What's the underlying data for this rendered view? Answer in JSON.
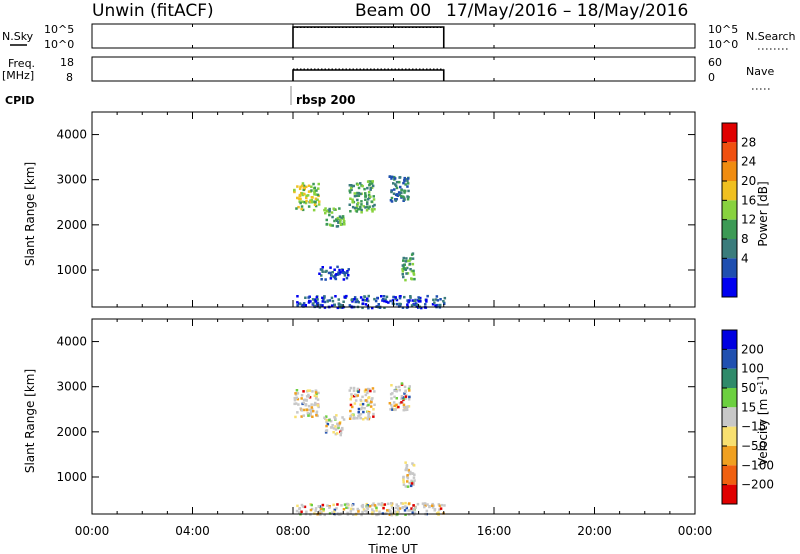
{
  "header": {
    "station": "Unwin (fitACF)",
    "beam": "Beam 00",
    "dates": "17/May/2016 – 18/May/2016"
  },
  "panel_nsky": {
    "left_label": "N.Sky",
    "right_label": "N.Search",
    "ticks_left": [
      "10^5",
      "10^0"
    ],
    "ticks_right": [
      "10^5",
      "10^0"
    ]
  },
  "panel_freq": {
    "left_label_1": "Freq.",
    "left_label_2": "[MHz]",
    "right_label": "Nave",
    "ticks_left": [
      "18",
      "8"
    ],
    "ticks_right": [
      "60",
      "0"
    ]
  },
  "cpid": {
    "label": "CPID",
    "program": "rbsp 200"
  },
  "x_axis": {
    "title": "Time UT",
    "ticks": [
      "00:00",
      "04:00",
      "08:00",
      "12:00",
      "16:00",
      "20:00",
      "00:00"
    ]
  },
  "power_colorbar": {
    "label": "Power [dB]",
    "ticks": [
      "4",
      "8",
      "12",
      "16",
      "20",
      "24",
      "28"
    ],
    "colors": [
      "#0000f0",
      "#1f4fb0",
      "#3a7c7c",
      "#3c9a55",
      "#88d23f",
      "#f0c020",
      "#f08c10",
      "#f05010",
      "#e00000"
    ]
  },
  "velocity_colorbar": {
    "label_main": "Velocity [m s",
    "label_sup": "-1",
    "label_end": "]",
    "ticks": [
      "200",
      "100",
      "50",
      "15",
      "−15",
      "−50",
      "−100",
      "−200"
    ],
    "colors": [
      "#0000e0",
      "#2050b0",
      "#2f8a6a",
      "#6cd040",
      "#c8c8c8",
      "#f8e070",
      "#f0a020",
      "#f06010",
      "#e00000"
    ]
  },
  "chart_data": [
    {
      "type": "line",
      "title": "N.Sky / N.Search",
      "x_unit": "hours UT",
      "xlim": [
        0,
        24
      ],
      "series": [
        {
          "name": "N.Sky",
          "x": [
            8.0,
            14.0
          ],
          "y": [
            100000,
            100000
          ]
        },
        {
          "name": "N.Search",
          "x": [
            8.0,
            14.0
          ],
          "y": [
            100000,
            100000
          ]
        }
      ]
    },
    {
      "type": "line",
      "title": "Freq. / Nave",
      "x_unit": "hours UT",
      "xlim": [
        0,
        24
      ],
      "series": [
        {
          "name": "Freq. [MHz]",
          "x": [
            8.0,
            14.0
          ],
          "y": [
            12,
            12
          ]
        },
        {
          "name": "Nave",
          "x": [
            8.0,
            14.0
          ],
          "y": [
            38,
            38
          ]
        }
      ]
    },
    {
      "type": "heatmap",
      "title": "Power [dB]",
      "xlabel": "Time UT",
      "ylabel": "Slant Range [km]",
      "xlim": [
        0,
        24
      ],
      "ylim": [
        180,
        4500
      ],
      "y_ticks": [
        1000,
        2000,
        3000,
        4000
      ],
      "active_interval": [
        8.0,
        14.0
      ],
      "regions": [
        {
          "x": [
            8.0,
            9.0
          ],
          "y": [
            2350,
            2950
          ],
          "level": 4
        },
        {
          "x": [
            9.2,
            10.0
          ],
          "y": [
            1950,
            2400
          ],
          "level": 3
        },
        {
          "x": [
            10.2,
            11.2
          ],
          "y": [
            2300,
            3000
          ],
          "level": 3
        },
        {
          "x": [
            11.8,
            12.6
          ],
          "y": [
            2500,
            3100
          ],
          "level": 2
        },
        {
          "x": [
            12.3,
            12.8
          ],
          "y": [
            800,
            1400
          ],
          "level": 3
        },
        {
          "x": [
            9.0,
            10.2
          ],
          "y": [
            800,
            1100
          ],
          "level": 1
        },
        {
          "x": [
            8.1,
            14.0
          ],
          "y": [
            180,
            450
          ],
          "level": 1
        }
      ]
    },
    {
      "type": "heatmap",
      "title": "Velocity [m s^-1]",
      "xlabel": "Time UT",
      "ylabel": "Slant Range [km]",
      "xlim": [
        0,
        24
      ],
      "ylim": [
        180,
        4500
      ],
      "y_ticks": [
        1000,
        2000,
        3000,
        4000
      ],
      "active_interval": [
        8.0,
        14.0
      ],
      "regions": [
        {
          "x": [
            8.0,
            9.0
          ],
          "y": [
            2350,
            2950
          ],
          "level": 4
        },
        {
          "x": [
            9.2,
            10.0
          ],
          "y": [
            1950,
            2400
          ],
          "level": 4
        },
        {
          "x": [
            10.2,
            11.2
          ],
          "y": [
            2300,
            3000
          ],
          "level": 5
        },
        {
          "x": [
            11.8,
            12.6
          ],
          "y": [
            2500,
            3100
          ],
          "level": 5
        },
        {
          "x": [
            12.3,
            12.8
          ],
          "y": [
            800,
            1400
          ],
          "level": 4
        },
        {
          "x": [
            8.1,
            14.0
          ],
          "y": [
            180,
            450
          ],
          "level": 6
        }
      ]
    }
  ]
}
